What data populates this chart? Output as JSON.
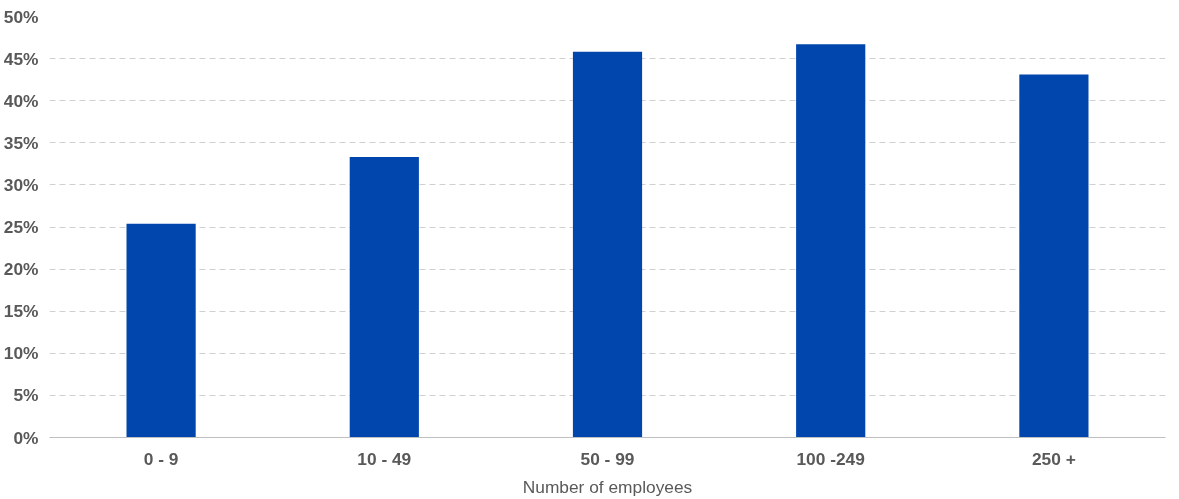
{
  "chart_data": {
    "type": "bar",
    "xlabel": "Number of employees",
    "categories": [
      "0 - 9",
      "10 - 49",
      "50 - 99",
      "100 -249",
      "250 +"
    ],
    "values": [
      25.4,
      33.3,
      45.8,
      46.7,
      43.1
    ],
    "color": "#0046ad",
    "ylim": [
      0,
      50
    ],
    "yticks": [
      {
        "value": 0,
        "label": "0%"
      },
      {
        "value": 5,
        "label": "5%"
      },
      {
        "value": 10,
        "label": "10%"
      },
      {
        "value": 15,
        "label": "15%"
      },
      {
        "value": 20,
        "label": "20%"
      },
      {
        "value": 25,
        "label": "25%"
      },
      {
        "value": 30,
        "label": "30%"
      },
      {
        "value": 35,
        "label": "35%"
      },
      {
        "value": 40,
        "label": "40%"
      },
      {
        "value": 45,
        "label": "45%"
      },
      {
        "value": 50,
        "label": "50%"
      }
    ],
    "grid": "y"
  }
}
